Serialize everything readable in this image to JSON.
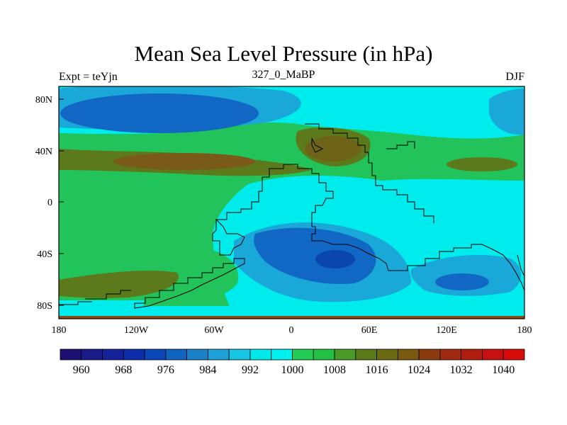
{
  "chart_data": {
    "type": "contour-map",
    "title": "Mean Sea Level Pressure (in hPa)",
    "left_label": "Expt = teYjn",
    "center_label": "327_0_MaBP",
    "right_label": "DJF",
    "x_ticks": [
      "180",
      "120W",
      "60W",
      "0",
      "60E",
      "120E",
      "180"
    ],
    "y_ticks": [
      "80N",
      "40N",
      "0",
      "40S",
      "80S"
    ],
    "xlim": [
      -180,
      180
    ],
    "ylim": [
      -90,
      90
    ],
    "colorbar": {
      "levels": [
        960,
        964,
        968,
        972,
        976,
        980,
        984,
        988,
        992,
        996,
        1000,
        1004,
        1008,
        1012,
        1016,
        1020,
        1024,
        1028,
        1032,
        1036,
        1040
      ],
      "labels": [
        "960",
        "968",
        "976",
        "984",
        "992",
        "1000",
        "1008",
        "1016",
        "1024",
        "1032",
        "1040"
      ],
      "colors": [
        "#1e1070",
        "#1a1a88",
        "#14229a",
        "#0c2eaa",
        "#0a48b8",
        "#1064c0",
        "#1a80c8",
        "#1ea0d8",
        "#18c4e4",
        "#00e8e8",
        "#00f0f0",
        "#22cc55",
        "#22c044",
        "#4a9a2a",
        "#5a7a1a",
        "#6b6b14",
        "#7a5a10",
        "#8c3a10",
        "#a02a10",
        "#b01e10",
        "#c81010",
        "#d80a0a"
      ]
    }
  }
}
